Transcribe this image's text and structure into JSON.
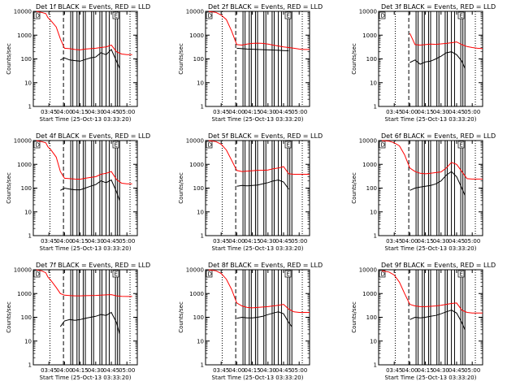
{
  "figure": {
    "panel_count": 9,
    "common": {
      "title_suffix": "BLACK = Events, RED = LLD",
      "ylabel": "Counts/sec",
      "xlabel": "Start Time (25-Oct-13 03:33:20)",
      "y_scale": "log",
      "ylim": [
        1,
        10000
      ],
      "y_ticks": [
        "1",
        "10",
        "100",
        "1000",
        "10000"
      ],
      "corner_labels": [
        "D",
        "E"
      ]
    }
  },
  "chart_data": [
    {
      "type": "line",
      "title": "Det 1f BLACK = Events, RED = LLD",
      "xlabel": "Start Time (25-Oct-13 03:33:20)",
      "ylabel": "Counts/sec",
      "y_scale": "log",
      "ylim": [
        1,
        10000
      ],
      "x_ticks": [
        "03:45",
        "04:00",
        "04:15",
        "04:30",
        "04:45",
        "05:00"
      ],
      "series": [
        {
          "color": "#ff0000",
          "x": [
            "03:33",
            "03:38",
            "03:42",
            "03:44",
            "03:47",
            "03:52",
            "03:56",
            "04:00",
            "04:05",
            "04:10",
            "04:15",
            "04:20",
            "04:25",
            "04:30",
            "04:35",
            "04:40",
            "04:45",
            "04:50",
            "04:55",
            "05:00",
            "05:05"
          ],
          "values": [
            10000,
            9000,
            8000,
            5500,
            4000,
            2200,
            700,
            280,
            270,
            250,
            240,
            260,
            270,
            280,
            300,
            320,
            380,
            200,
            160,
            150,
            150
          ]
        },
        {
          "color": "#000000",
          "x": [
            "03:56",
            "04:00",
            "04:05",
            "04:10",
            "04:15",
            "04:20",
            "04:25",
            "04:30",
            "04:35",
            "04:40",
            "04:45",
            "04:50",
            "04:53"
          ],
          "values": [
            90,
            110,
            90,
            85,
            80,
            95,
            110,
            120,
            180,
            150,
            250,
            80,
            40
          ]
        }
      ]
    },
    {
      "type": "line",
      "title": "Det 2f BLACK = Events, RED = LLD",
      "xlabel": "Start Time (25-Oct-13 03:33:20)",
      "ylabel": "Counts/sec",
      "y_scale": "log",
      "ylim": [
        1,
        10000
      ],
      "x_ticks": [
        "03:45",
        "04:00",
        "04:15",
        "04:30",
        "04:45",
        "05:00"
      ],
      "series": [
        {
          "color": "#ff0000",
          "x": [
            "03:33",
            "03:40",
            "03:45",
            "03:50",
            "03:55",
            "04:00",
            "04:05",
            "04:10",
            "04:15",
            "04:20",
            "04:25",
            "04:30",
            "04:35",
            "04:40",
            "04:45",
            "04:50",
            "04:55",
            "05:00",
            "05:05",
            "05:10"
          ],
          "values": [
            10000,
            9000,
            7000,
            4500,
            1500,
            400,
            380,
            420,
            450,
            460,
            450,
            420,
            380,
            350,
            320,
            300,
            280,
            260,
            250,
            250
          ]
        },
        {
          "color": "#000000",
          "x": [
            "04:00",
            "04:05",
            "04:10",
            "04:15",
            "04:20",
            "04:25",
            "04:30",
            "04:35",
            "04:40",
            "04:45",
            "04:50"
          ],
          "values": [
            280,
            270,
            260,
            255,
            250,
            245,
            240,
            235,
            230,
            225,
            220
          ]
        }
      ]
    },
    {
      "type": "line",
      "title": "Det 3f BLACK = Events, RED = LLD",
      "xlabel": "Start Time (25-Oct-13 03:33:20)",
      "ylabel": "Counts/sec",
      "y_scale": "log",
      "ylim": [
        1,
        10000
      ],
      "x_ticks": [
        "03:45",
        "04:00",
        "04:15",
        "04:30",
        "04:45",
        "05:00"
      ],
      "series": [
        {
          "color": "#ff0000",
          "x": [
            "04:00",
            "04:05",
            "04:10",
            "04:15",
            "04:20",
            "04:25",
            "04:30",
            "04:35",
            "04:40",
            "04:45",
            "04:50",
            "04:55",
            "05:00",
            "05:05",
            "05:10"
          ],
          "values": [
            1200,
            400,
            380,
            400,
            420,
            410,
            430,
            450,
            480,
            520,
            400,
            330,
            300,
            280,
            270
          ]
        },
        {
          "color": "#000000",
          "x": [
            "04:00",
            "04:05",
            "04:10",
            "04:15",
            "04:20",
            "04:25",
            "04:30",
            "04:35",
            "04:40",
            "04:45",
            "04:50",
            "04:53"
          ],
          "values": [
            70,
            90,
            60,
            75,
            80,
            100,
            130,
            180,
            200,
            150,
            80,
            40
          ]
        }
      ]
    },
    {
      "type": "line",
      "title": "Det 4f BLACK = Events, RED = LLD",
      "xlabel": "Start Time (25-Oct-13 03:33:20)",
      "ylabel": "Counts/sec",
      "y_scale": "log",
      "ylim": [
        1,
        10000
      ],
      "x_ticks": [
        "03:45",
        "04:00",
        "04:15",
        "04:30",
        "04:45",
        "05:00"
      ],
      "series": [
        {
          "color": "#ff0000",
          "x": [
            "03:33",
            "03:38",
            "03:42",
            "03:44",
            "03:47",
            "03:52",
            "03:56",
            "04:00",
            "04:05",
            "04:10",
            "04:15",
            "04:20",
            "04:25",
            "04:30",
            "04:35",
            "04:40",
            "04:45",
            "04:50",
            "04:55",
            "05:00",
            "05:05"
          ],
          "values": [
            10000,
            9000,
            8000,
            5500,
            4000,
            2000,
            500,
            260,
            250,
            240,
            235,
            260,
            280,
            300,
            380,
            420,
            500,
            230,
            160,
            150,
            150
          ]
        },
        {
          "color": "#000000",
          "x": [
            "03:56",
            "04:00",
            "04:05",
            "04:10",
            "04:15",
            "04:20",
            "04:25",
            "04:30",
            "04:35",
            "04:40",
            "04:45",
            "04:50",
            "04:53"
          ],
          "values": [
            80,
            100,
            90,
            85,
            85,
            100,
            120,
            140,
            200,
            170,
            220,
            70,
            30
          ]
        }
      ]
    },
    {
      "type": "line",
      "title": "Det 5f BLACK = Events, RED = LLD",
      "xlabel": "Start Time (25-Oct-13 03:33:20)",
      "ylabel": "Counts/sec",
      "y_scale": "log",
      "ylim": [
        1,
        10000
      ],
      "x_ticks": [
        "03:45",
        "04:00",
        "04:15",
        "04:30",
        "04:45",
        "05:00"
      ],
      "series": [
        {
          "color": "#ff0000",
          "x": [
            "03:33",
            "03:40",
            "03:45",
            "03:50",
            "03:55",
            "04:00",
            "04:05",
            "04:10",
            "04:15",
            "04:20",
            "04:25",
            "04:30",
            "04:35",
            "04:40",
            "04:45",
            "04:50",
            "04:55",
            "05:00",
            "05:05",
            "05:10"
          ],
          "values": [
            10000,
            9000,
            7000,
            4000,
            1500,
            550,
            500,
            520,
            540,
            560,
            560,
            580,
            650,
            700,
            800,
            400,
            380,
            380,
            380,
            380
          ]
        },
        {
          "color": "#000000",
          "x": [
            "04:00",
            "04:05",
            "04:10",
            "04:15",
            "04:20",
            "04:25",
            "04:30",
            "04:35",
            "04:40",
            "04:45",
            "04:50"
          ],
          "values": [
            120,
            130,
            125,
            130,
            135,
            150,
            170,
            200,
            220,
            180,
            90
          ]
        }
      ]
    },
    {
      "type": "line",
      "title": "Det 6f BLACK = Events, RED = LLD",
      "xlabel": "Start Time (25-Oct-13 03:33:20)",
      "ylabel": "Counts/sec",
      "y_scale": "log",
      "ylim": [
        1,
        10000
      ],
      "x_ticks": [
        "03:45",
        "04:00",
        "04:15",
        "04:30",
        "04:45",
        "05:00"
      ],
      "series": [
        {
          "color": "#ff0000",
          "x": [
            "03:33",
            "03:40",
            "03:45",
            "03:50",
            "03:55",
            "04:00",
            "04:05",
            "04:10",
            "04:15",
            "04:20",
            "04:25",
            "04:30",
            "04:35",
            "04:40",
            "04:45",
            "04:50",
            "04:55",
            "05:00",
            "05:05",
            "05:10"
          ],
          "values": [
            10000,
            9500,
            8000,
            6000,
            2500,
            700,
            500,
            420,
            400,
            420,
            450,
            480,
            700,
            1200,
            1000,
            500,
            250,
            240,
            240,
            240
          ]
        },
        {
          "color": "#000000",
          "x": [
            "04:00",
            "04:05",
            "04:10",
            "04:15",
            "04:20",
            "04:25",
            "04:30",
            "04:35",
            "04:40",
            "04:45",
            "04:50",
            "04:53"
          ],
          "values": [
            80,
            100,
            110,
            120,
            130,
            150,
            200,
            350,
            500,
            300,
            100,
            50
          ]
        }
      ]
    },
    {
      "type": "line",
      "title": "Det 7f BLACK = Events, RED = LLD",
      "xlabel": "Start Time (25-Oct-13 03:33:20)",
      "ylabel": "Counts/sec",
      "y_scale": "log",
      "ylim": [
        1,
        10000
      ],
      "x_ticks": [
        "03:45",
        "04:00",
        "04:15",
        "04:30",
        "04:45",
        "05:00"
      ],
      "series": [
        {
          "color": "#ff0000",
          "x": [
            "03:33",
            "03:38",
            "03:42",
            "03:44",
            "03:47",
            "03:52",
            "03:56",
            "04:00",
            "04:05",
            "04:10",
            "04:15",
            "04:20",
            "04:25",
            "04:30",
            "04:35",
            "04:40",
            "04:45",
            "04:50",
            "04:55",
            "05:00",
            "05:05"
          ],
          "values": [
            10000,
            9000,
            7500,
            5000,
            3500,
            1800,
            1000,
            850,
            820,
            800,
            800,
            810,
            820,
            830,
            860,
            880,
            900,
            800,
            760,
            750,
            750
          ]
        },
        {
          "color": "#000000",
          "x": [
            "03:56",
            "04:00",
            "04:05",
            "04:10",
            "04:15",
            "04:20",
            "04:25",
            "04:30",
            "04:35",
            "04:40",
            "04:45",
            "04:50",
            "04:53"
          ],
          "values": [
            40,
            70,
            80,
            75,
            80,
            90,
            100,
            110,
            130,
            120,
            160,
            60,
            20
          ]
        }
      ]
    },
    {
      "type": "line",
      "title": "Det 8f BLACK = Events, RED = LLD",
      "xlabel": "Start Time (25-Oct-13 03:33:20)",
      "ylabel": "Counts/sec",
      "y_scale": "log",
      "ylim": [
        1,
        10000
      ],
      "x_ticks": [
        "03:45",
        "04:00",
        "04:15",
        "04:30",
        "04:45",
        "05:00"
      ],
      "series": [
        {
          "color": "#ff0000",
          "x": [
            "03:33",
            "03:40",
            "03:45",
            "03:50",
            "03:55",
            "04:00",
            "04:05",
            "04:10",
            "04:15",
            "04:20",
            "04:25",
            "04:30",
            "04:35",
            "04:40",
            "04:45",
            "04:50",
            "04:55",
            "05:00",
            "05:05",
            "05:10"
          ],
          "values": [
            10000,
            9000,
            7000,
            4000,
            1500,
            400,
            300,
            260,
            250,
            260,
            270,
            280,
            300,
            320,
            350,
            220,
            170,
            160,
            160,
            160
          ]
        },
        {
          "color": "#000000",
          "x": [
            "04:00",
            "04:05",
            "04:10",
            "04:15",
            "04:20",
            "04:25",
            "04:30",
            "04:35",
            "04:40",
            "04:45",
            "04:50",
            "04:53"
          ],
          "values": [
            90,
            100,
            95,
            95,
            100,
            110,
            130,
            150,
            170,
            140,
            60,
            40
          ]
        }
      ]
    },
    {
      "type": "line",
      "title": "Det 9f BLACK = Events, RED = LLD",
      "xlabel": "Start Time (25-Oct-13 03:33:20)",
      "ylabel": "Counts/sec",
      "y_scale": "log",
      "ylim": [
        1,
        10000
      ],
      "x_ticks": [
        "03:45",
        "04:00",
        "04:15",
        "04:30",
        "04:45",
        "05:00"
      ],
      "series": [
        {
          "color": "#ff0000",
          "x": [
            "03:33",
            "03:40",
            "03:45",
            "03:50",
            "03:55",
            "04:00",
            "04:05",
            "04:10",
            "04:15",
            "04:20",
            "04:25",
            "04:30",
            "04:35",
            "04:40",
            "04:45",
            "04:50",
            "04:55",
            "05:00",
            "05:05",
            "05:10"
          ],
          "values": [
            9000,
            8000,
            6000,
            3000,
            1000,
            350,
            300,
            280,
            280,
            290,
            300,
            320,
            350,
            380,
            400,
            200,
            160,
            150,
            150,
            150
          ]
        },
        {
          "color": "#000000",
          "x": [
            "04:00",
            "04:05",
            "04:10",
            "04:15",
            "04:20",
            "04:25",
            "04:30",
            "04:35",
            "04:40",
            "04:45",
            "04:50",
            "04:53"
          ],
          "values": [
            80,
            100,
            95,
            100,
            110,
            120,
            140,
            170,
            200,
            150,
            60,
            30
          ]
        }
      ]
    }
  ]
}
